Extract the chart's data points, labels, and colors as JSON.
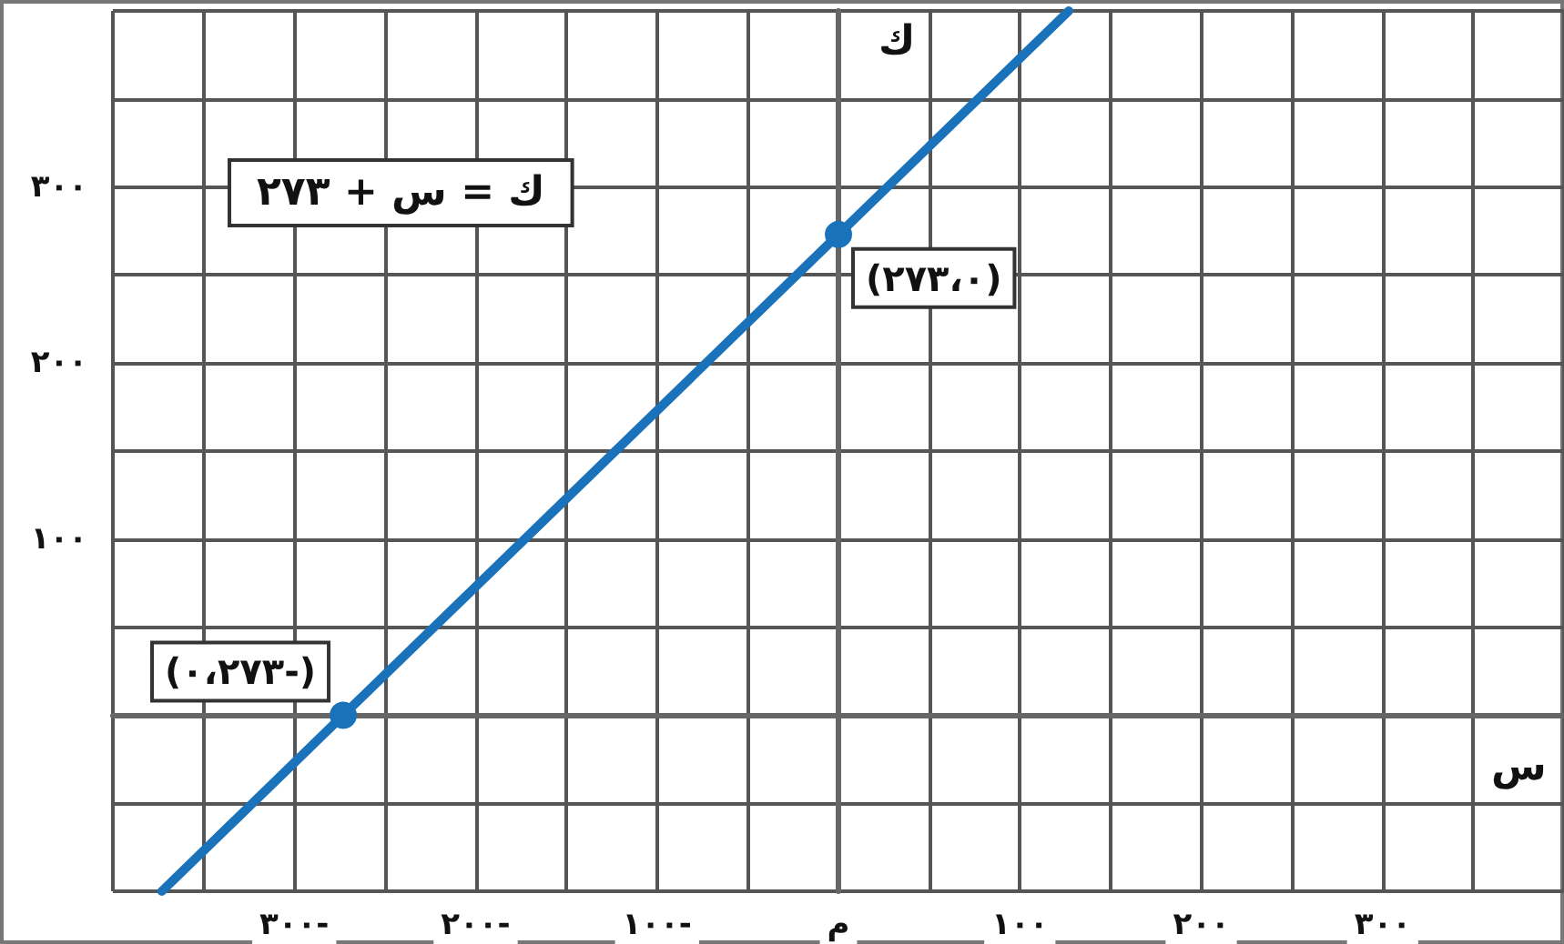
{
  "chart_data": {
    "type": "line",
    "xlabel": "س",
    "ylabel": "ك",
    "xlim": [
      -400,
      400
    ],
    "ylim": [
      -100,
      400
    ],
    "xticks": [
      {
        "value": -300,
        "label": "٣٠٠-"
      },
      {
        "value": -200,
        "label": "٢٠٠-"
      },
      {
        "value": -100,
        "label": "١٠٠-"
      },
      {
        "value": 0,
        "label": "م"
      },
      {
        "value": 100,
        "label": "١٠٠"
      },
      {
        "value": 200,
        "label": "٢٠٠"
      },
      {
        "value": 300,
        "label": "٣٠٠"
      }
    ],
    "yticks": [
      {
        "value": 100,
        "label": "١٠٠"
      },
      {
        "value": 200,
        "label": "٢٠٠"
      },
      {
        "value": 300,
        "label": "٣٠٠"
      }
    ],
    "grid": true,
    "legend": false,
    "series": [
      {
        "name": "ك = س + ٢٧٣",
        "color": "#1a72bb",
        "x": [
          -373,
          -273,
          0,
          127
        ],
        "values": [
          -100,
          0,
          273,
          400
        ],
        "marker": "none"
      },
      {
        "type": "scatter",
        "color": "#1a72bb",
        "x": [
          -273,
          0
        ],
        "values": [
          0,
          273
        ],
        "marker": "circle"
      }
    ],
    "annotations": [
      {
        "text": "(٢٧٣،٠)",
        "x": 0,
        "y": 273
      },
      {
        "text": "(٠،٢٧٣-)",
        "x": -273,
        "y": 0
      }
    ]
  }
}
